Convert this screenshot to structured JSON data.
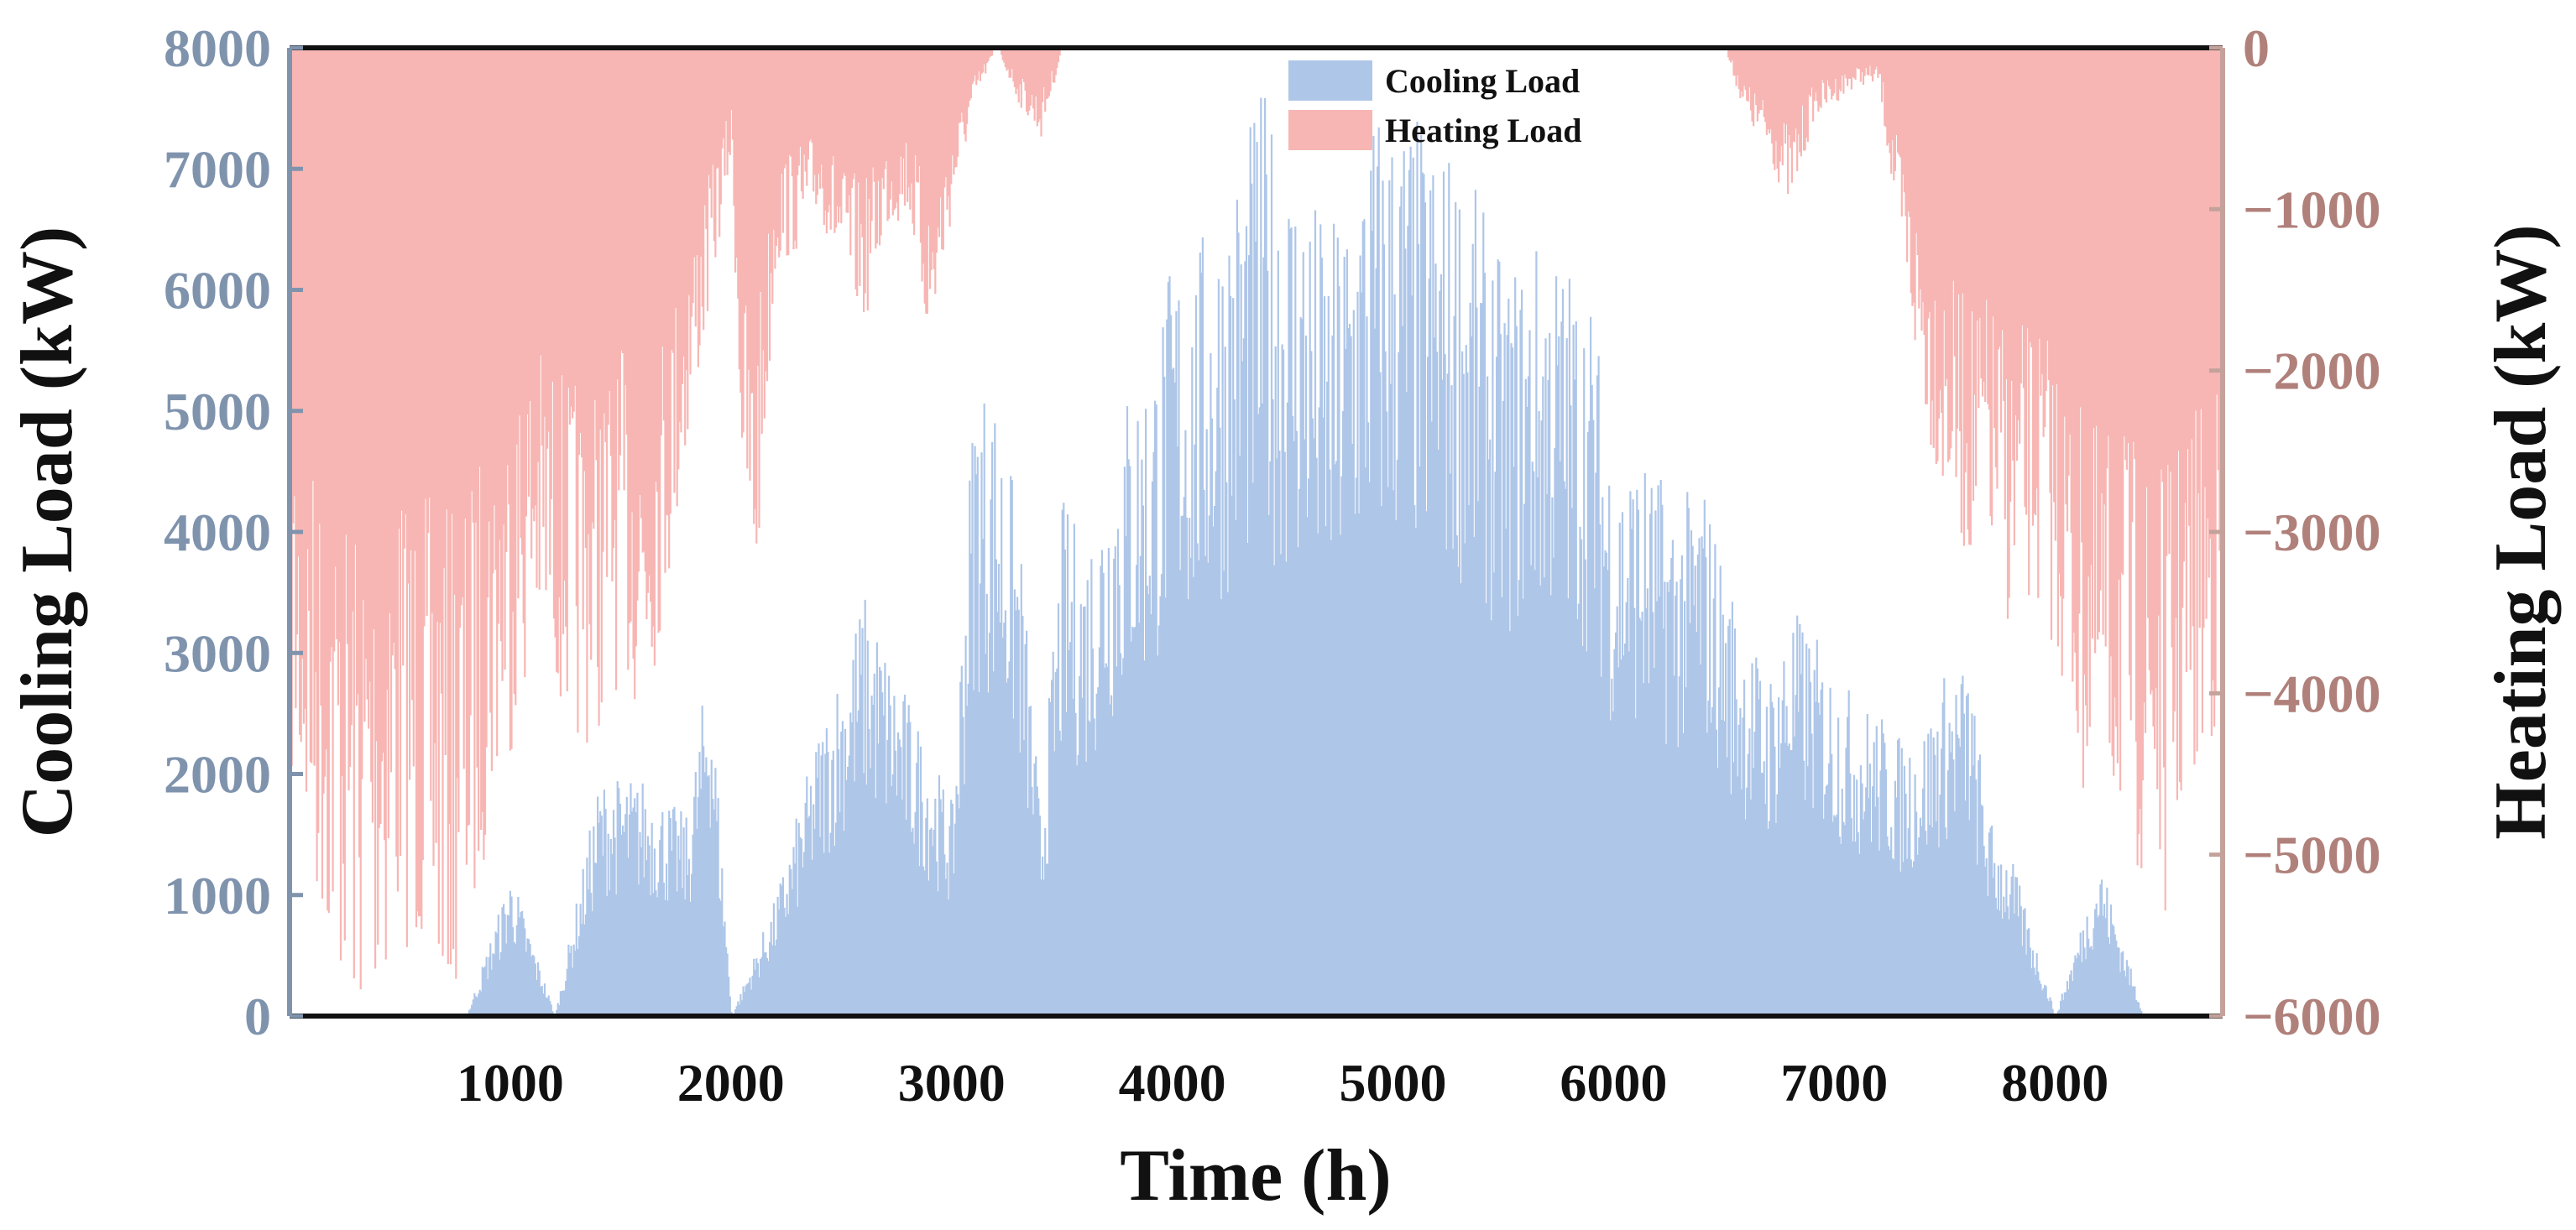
{
  "chart_data": {
    "type": "bar",
    "title": "",
    "xlabel": "Time (h)",
    "ylabel_left": "Cooling Load (kW)",
    "ylabel_right": "Heating Load (kW)",
    "xlim": [
      0,
      8760
    ],
    "ylim_left": [
      0,
      8000
    ],
    "ylim_right": [
      -6000,
      0
    ],
    "x_ticks": [
      "1000",
      "2000",
      "3000",
      "4000",
      "5000",
      "6000",
      "7000",
      "8000"
    ],
    "y_left_ticks": [
      "0",
      "1000",
      "2000",
      "3000",
      "4000",
      "5000",
      "6000",
      "7000",
      "8000"
    ],
    "y_right_ticks": [
      "0",
      "−1000",
      "−2000",
      "−3000",
      "−4000",
      "−5000",
      "−6000"
    ],
    "legend_position": "top-center",
    "series": [
      {
        "name": "Cooling Load",
        "axis": "left",
        "color": "#aec6e8",
        "x": [
          0,
          200,
          400,
          600,
          800,
          1000,
          1200,
          1400,
          1600,
          1800,
          1900,
          2000,
          2200,
          2400,
          2600,
          2800,
          3000,
          3100,
          3200,
          3300,
          3400,
          3500,
          3600,
          3700,
          3800,
          3900,
          4000,
          4100,
          4200,
          4300,
          4400,
          4500,
          4600,
          4700,
          4800,
          4900,
          5000,
          5100,
          5200,
          5300,
          5400,
          5500,
          5600,
          5700,
          5800,
          5900,
          6000,
          6100,
          6200,
          6300,
          6400,
          6500,
          6600,
          6700,
          6800,
          6900,
          7000,
          7100,
          7200,
          7300,
          7400,
          7500,
          7600,
          7700,
          7800,
          8000,
          8200,
          8400,
          8760
        ],
        "values": [
          0,
          0,
          0,
          0,
          0,
          1100,
          0,
          1800,
          1800,
          1500,
          2800,
          0,
          900,
          2200,
          3200,
          2400,
          1600,
          4900,
          4700,
          3800,
          1500,
          3900,
          3600,
          4200,
          4800,
          5000,
          5800,
          5800,
          6100,
          6500,
          7000,
          6600,
          6400,
          5900,
          6300,
          6900,
          6900,
          6800,
          6600,
          6500,
          6100,
          5600,
          5800,
          5900,
          5700,
          5400,
          4200,
          4300,
          4100,
          3900,
          4100,
          3400,
          2900,
          2600,
          3100,
          2900,
          2600,
          2400,
          2300,
          2100,
          2200,
          2600,
          2700,
          1500,
          1200,
          0,
          1200,
          0,
          0
        ]
      },
      {
        "name": "Heating Load",
        "axis": "right",
        "color": "#f7b6b3",
        "x": [
          0,
          100,
          200,
          300,
          400,
          500,
          600,
          700,
          800,
          900,
          1000,
          1100,
          1200,
          1300,
          1400,
          1500,
          1600,
          1700,
          1800,
          1900,
          2000,
          2050,
          2100,
          2200,
          2300,
          2400,
          2500,
          2600,
          2700,
          2800,
          2900,
          3000,
          3100,
          3200,
          3300,
          3400,
          3500,
          6500,
          6600,
          6700,
          6800,
          6900,
          7000,
          7100,
          7200,
          7300,
          7400,
          7500,
          7600,
          7700,
          7800,
          7900,
          8000,
          8100,
          8200,
          8300,
          8400,
          8500,
          8600,
          8700,
          8760
        ],
        "values": [
          -4000,
          -4600,
          -5000,
          -5300,
          -5200,
          -4800,
          -5000,
          -5200,
          -5000,
          -4200,
          -3800,
          -3300,
          -3500,
          -3800,
          -3700,
          -3400,
          -3700,
          -3000,
          -2200,
          -1400,
          -600,
          -2600,
          -3200,
          -1200,
          -1100,
          -900,
          -1300,
          -1500,
          -1000,
          -900,
          -1700,
          -900,
          -300,
          0,
          -300,
          -500,
          0,
          0,
          -400,
          -600,
          -900,
          -400,
          -300,
          -200,
          -200,
          -1200,
          -2000,
          -2500,
          -2800,
          -2800,
          -3200,
          -3000,
          -3300,
          -4000,
          -4300,
          -4200,
          -4600,
          -4700,
          -4100,
          -3800,
          -3600
        ]
      }
    ]
  }
}
